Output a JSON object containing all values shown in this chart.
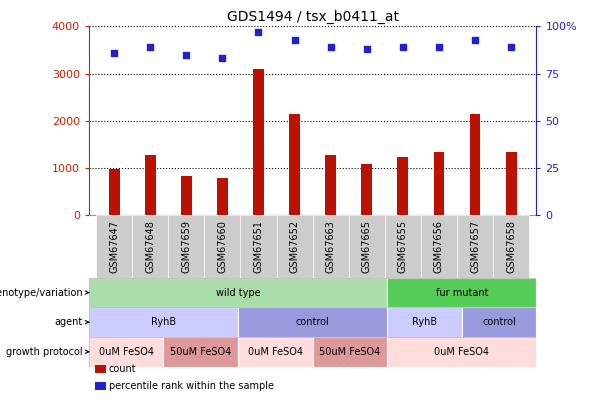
{
  "title": "GDS1494 / tsx_b0411_at",
  "samples": [
    "GSM67647",
    "GSM67648",
    "GSM67659",
    "GSM67660",
    "GSM67651",
    "GSM67652",
    "GSM67663",
    "GSM67665",
    "GSM67655",
    "GSM67656",
    "GSM67657",
    "GSM67658"
  ],
  "counts": [
    980,
    1280,
    820,
    780,
    3100,
    2150,
    1280,
    1090,
    1230,
    1330,
    2150,
    1340
  ],
  "percentiles": [
    86,
    89,
    85,
    83,
    97,
    93,
    89,
    88,
    89,
    89,
    93,
    89
  ],
  "bar_color": "#bb1100",
  "dot_color": "#2222cc",
  "ylim_left": [
    0,
    4000
  ],
  "ylim_right": [
    0,
    100
  ],
  "yticks_left": [
    0,
    1000,
    2000,
    3000,
    4000
  ],
  "ytick_labels_right": [
    "0",
    "25",
    "50",
    "75",
    "100%"
  ],
  "annotation_rows": [
    {
      "label": "genotype/variation",
      "segments": [
        {
          "text": "wild type",
          "span": [
            0,
            8
          ],
          "color": "#aaddaa"
        },
        {
          "text": "fur mutant",
          "span": [
            8,
            12
          ],
          "color": "#55cc55"
        }
      ]
    },
    {
      "label": "agent",
      "segments": [
        {
          "text": "RyhB",
          "span": [
            0,
            4
          ],
          "color": "#ccccff"
        },
        {
          "text": "control",
          "span": [
            4,
            8
          ],
          "color": "#9999dd"
        },
        {
          "text": "RyhB",
          "span": [
            8,
            10
          ],
          "color": "#ccccff"
        },
        {
          "text": "control",
          "span": [
            10,
            12
          ],
          "color": "#9999dd"
        }
      ]
    },
    {
      "label": "growth protocol",
      "segments": [
        {
          "text": "0uM FeSO4",
          "span": [
            0,
            2
          ],
          "color": "#ffdddd"
        },
        {
          "text": "50uM FeSO4",
          "span": [
            2,
            4
          ],
          "color": "#dd9999"
        },
        {
          "text": "0uM FeSO4",
          "span": [
            4,
            6
          ],
          "color": "#ffdddd"
        },
        {
          "text": "50uM FeSO4",
          "span": [
            6,
            8
          ],
          "color": "#dd9999"
        },
        {
          "text": "0uM FeSO4",
          "span": [
            8,
            12
          ],
          "color": "#ffdddd"
        }
      ]
    }
  ],
  "legend_items": [
    {
      "label": "count",
      "color": "#bb1100"
    },
    {
      "label": "percentile rank within the sample",
      "color": "#2222cc"
    }
  ],
  "left_axis_color": "#cc2200",
  "right_axis_color": "#2222cc",
  "xtick_bg_color": "#cccccc",
  "bar_width": 0.3
}
